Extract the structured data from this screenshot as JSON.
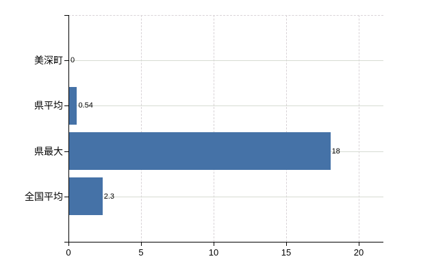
{
  "chart_data": {
    "type": "bar",
    "orientation": "horizontal",
    "title": "",
    "xlabel": "",
    "ylabel": "",
    "categories": [
      "美深町",
      "県平均",
      "県最大",
      "全国平均"
    ],
    "values": [
      0,
      0.54,
      18,
      2.3
    ],
    "value_labels": [
      "0",
      "0.54",
      "18",
      "2.3"
    ],
    "xlim": [
      0,
      21.7
    ],
    "xticks": [
      0,
      5,
      10,
      15,
      20
    ],
    "xtick_labels": [
      "0",
      "5",
      "10",
      "15",
      "20"
    ],
    "grid": {
      "vertical_gridlines": "dashed",
      "horizontal_gridlines": "solid",
      "top_border": "dashed"
    },
    "legend": null,
    "colors": {
      "bar": "#4572A7",
      "axis": "#000000",
      "gridline_horizontal": "#D6DBD2",
      "gridline_vertical": "#D8D2D6",
      "text": "#000000",
      "background": "#FFFFFF"
    }
  }
}
